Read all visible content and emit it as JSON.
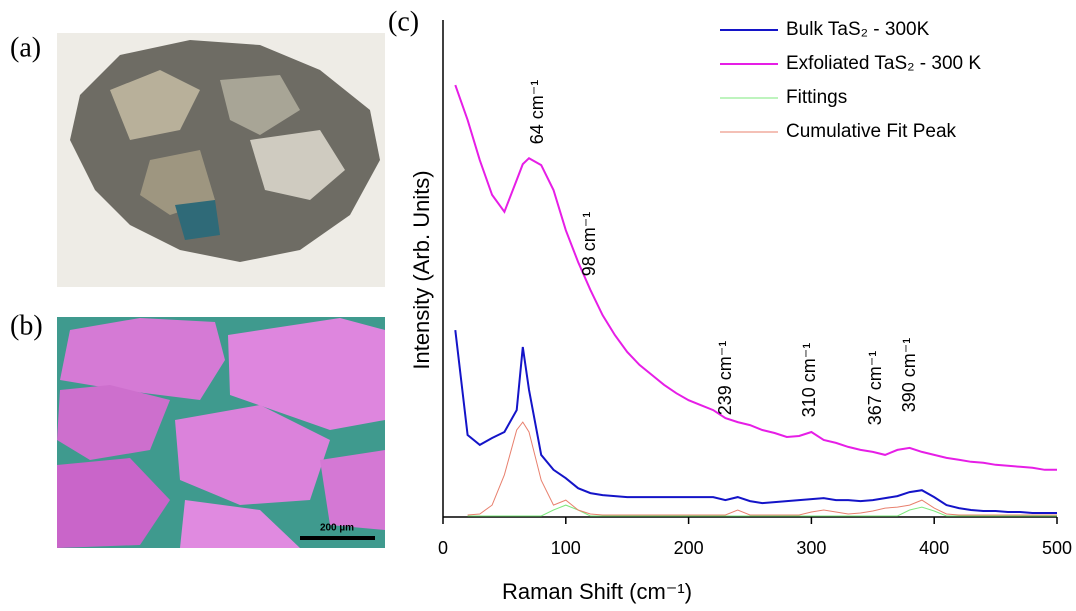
{
  "panels": {
    "a": "(a)",
    "b": "(b)",
    "c": "(c)"
  },
  "scale_bar": "200 µm",
  "chart_data": {
    "type": "line",
    "xlabel": "Raman Shift (cm⁻¹)",
    "ylabel": "Intensity (Arb. Units)",
    "xlim": [
      0,
      500
    ],
    "xticks": [
      0,
      100,
      200,
      300,
      400,
      500
    ],
    "ylim": [
      0,
      100
    ],
    "x": [
      10,
      20,
      30,
      40,
      50,
      60,
      65,
      70,
      80,
      90,
      100,
      110,
      120,
      130,
      140,
      150,
      160,
      170,
      180,
      190,
      200,
      210,
      220,
      230,
      240,
      250,
      260,
      270,
      280,
      290,
      300,
      310,
      320,
      330,
      340,
      350,
      360,
      370,
      380,
      390,
      400,
      410,
      420,
      430,
      440,
      450,
      460,
      470,
      480,
      490,
      500
    ],
    "series": [
      {
        "name": "Bulk TaS₂ - 300K",
        "color": "#1414c8",
        "values": [
          37.6,
          16.5,
          14.5,
          15.9,
          17.1,
          21.5,
          34.2,
          25.6,
          12.5,
          9.5,
          7.8,
          5.8,
          4.8,
          4.4,
          4.2,
          4.0,
          4.0,
          4.0,
          4.0,
          4.0,
          4.0,
          4.0,
          4.0,
          3.4,
          4.0,
          3.2,
          2.8,
          3.0,
          3.2,
          3.4,
          3.6,
          3.8,
          3.4,
          3.4,
          3.2,
          3.4,
          3.8,
          4.2,
          5.0,
          5.4,
          4.0,
          2.4,
          1.8,
          1.4,
          1.2,
          1.2,
          1.0,
          1.0,
          0.8,
          0.8,
          0.8
        ]
      },
      {
        "name": "Exfoliated TaS₂ - 300 K",
        "color": "#e61ee6",
        "values": [
          86.9,
          79.9,
          71.8,
          64.8,
          61.4,
          67.8,
          71.0,
          72.2,
          70.8,
          65.8,
          57.7,
          51.3,
          45.7,
          40.6,
          36.6,
          33.2,
          30.6,
          28.6,
          26.6,
          24.9,
          23.5,
          22.5,
          21.5,
          19.9,
          19.1,
          18.5,
          17.5,
          16.9,
          16.1,
          16.3,
          17.1,
          15.5,
          14.9,
          14.1,
          13.5,
          13.1,
          12.5,
          13.5,
          13.9,
          13.1,
          12.5,
          11.9,
          11.5,
          11.1,
          10.9,
          10.5,
          10.3,
          10.1,
          9.9,
          9.5,
          9.5
        ]
      },
      {
        "name": "Fittings",
        "color": "#7ee87e",
        "values": [
          null,
          0.2,
          0.2,
          0.2,
          0.2,
          0.2,
          0.2,
          0.2,
          0.2,
          1.4,
          2.4,
          1.4,
          0.2,
          0.2,
          0.2,
          0.2,
          0.2,
          0.2,
          0.2,
          0.2,
          0.2,
          0.2,
          0.2,
          0.2,
          0.2,
          0.2,
          0.2,
          0.2,
          0.2,
          0.2,
          0.2,
          0.2,
          0.2,
          0.2,
          0.2,
          0.2,
          0.2,
          0.2,
          1.4,
          2.0,
          1.2,
          0.2,
          0.2,
          0.2,
          0.2,
          0.2,
          0.2,
          0.2,
          0.2,
          0.2,
          0.2
        ]
      },
      {
        "name": "Cumulative Fit Peak",
        "color": "#e8806e",
        "values": [
          null,
          0.4,
          0.6,
          2.4,
          8.5,
          17.5,
          19.1,
          17.1,
          7.4,
          2.4,
          3.4,
          1.4,
          0.6,
          0.4,
          0.4,
          0.4,
          0.4,
          0.4,
          0.4,
          0.4,
          0.4,
          0.4,
          0.4,
          0.4,
          1.4,
          0.4,
          0.4,
          0.4,
          0.4,
          0.4,
          1.0,
          1.4,
          1.0,
          0.6,
          0.8,
          1.2,
          1.8,
          2.0,
          2.4,
          3.4,
          1.8,
          0.6,
          0.4,
          0.4,
          0.4,
          0.4,
          0.4,
          0.4,
          0.4,
          0.4,
          0.4
        ]
      }
    ],
    "annotations": [
      "64 cm⁻¹",
      "98 cm⁻¹",
      "239 cm⁻¹",
      "310 cm⁻¹",
      "367 cm⁻¹",
      "390 cm⁻¹"
    ]
  }
}
